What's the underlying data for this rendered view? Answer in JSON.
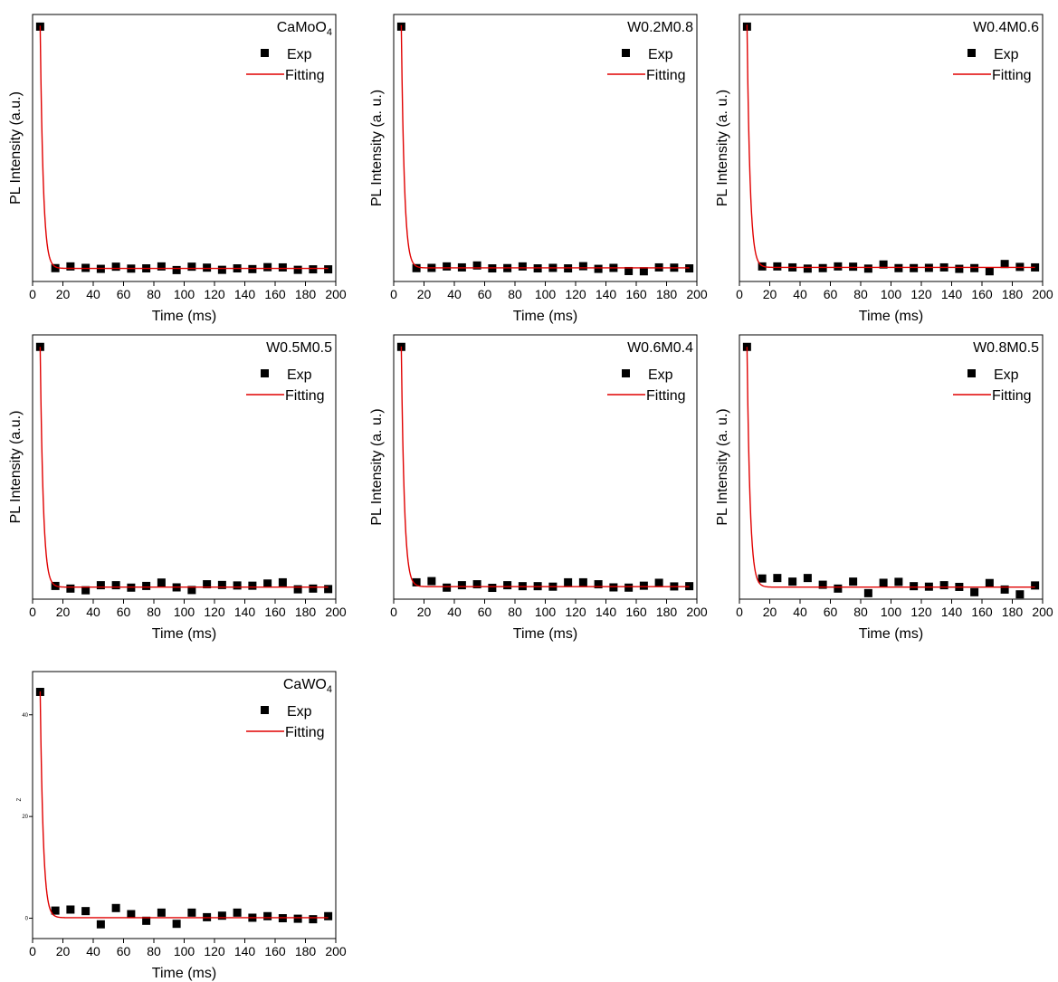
{
  "chart_data": [
    {
      "type": "scatter",
      "panel_label": "CaMoO",
      "panel_label_sub": "4",
      "xlabel": "Time (ms)",
      "ylabel": "PL Intensity (a.u.)",
      "xlim": [
        0,
        200
      ],
      "xticks": [
        0,
        20,
        40,
        60,
        80,
        100,
        120,
        140,
        160,
        180,
        200
      ],
      "ylim": [
        -0.05,
        1.05
      ],
      "show_yticks": false,
      "legend_position": "top-right",
      "series": [
        {
          "name": "Exp",
          "kind": "points",
          "color": "#000000",
          "x": [
            5,
            15,
            25,
            35,
            45,
            55,
            65,
            75,
            85,
            95,
            105,
            115,
            125,
            135,
            145,
            155,
            165,
            175,
            185,
            195
          ],
          "y": [
            1.0,
            0.005,
            0.012,
            0.006,
            0.002,
            0.011,
            0.003,
            0.004,
            0.012,
            -0.003,
            0.011,
            0.007,
            -0.002,
            0.004,
            0.001,
            0.009,
            0.008,
            -0.002,
            0.0,
            0.0
          ]
        },
        {
          "name": "Fitting",
          "kind": "fit",
          "color": "#e00000",
          "amplitude": 1.0,
          "tau": 2.0,
          "offset": 0.004
        }
      ]
    },
    {
      "type": "scatter",
      "panel_label": "W0.2M0.8",
      "xlabel": "Time (ms)",
      "ylabel": "PL Intensity (a. u.)",
      "xlim": [
        0,
        200
      ],
      "xticks": [
        0,
        20,
        40,
        60,
        80,
        100,
        120,
        140,
        160,
        180,
        200
      ],
      "ylim": [
        -0.05,
        1.05
      ],
      "show_yticks": false,
      "legend_position": "top-right",
      "series": [
        {
          "name": "Exp",
          "kind": "points",
          "color": "#000000",
          "x": [
            5,
            15,
            25,
            35,
            45,
            55,
            65,
            75,
            85,
            95,
            105,
            115,
            125,
            135,
            145,
            155,
            165,
            175,
            185,
            195
          ],
          "y": [
            1.0,
            0.005,
            0.006,
            0.012,
            0.008,
            0.016,
            0.004,
            0.005,
            0.012,
            0.004,
            0.006,
            0.004,
            0.013,
            0.002,
            0.006,
            -0.007,
            -0.008,
            0.008,
            0.007,
            0.004
          ]
        },
        {
          "name": "Fitting",
          "kind": "fit",
          "color": "#e00000",
          "amplitude": 1.0,
          "tau": 2.0,
          "offset": 0.006
        }
      ]
    },
    {
      "type": "scatter",
      "panel_label": "W0.4M0.6",
      "xlabel": "Time (ms)",
      "ylabel": "PL Intensity (a. u.)",
      "xlim": [
        0,
        200
      ],
      "xticks": [
        0,
        20,
        40,
        60,
        80,
        100,
        120,
        140,
        160,
        180,
        200
      ],
      "ylim": [
        -0.05,
        1.05
      ],
      "show_yticks": false,
      "legend_position": "top-right",
      "series": [
        {
          "name": "Exp",
          "kind": "points",
          "color": "#000000",
          "x": [
            5,
            15,
            25,
            35,
            45,
            55,
            65,
            75,
            85,
            95,
            105,
            115,
            125,
            135,
            145,
            155,
            165,
            175,
            185,
            195
          ],
          "y": [
            1.0,
            0.012,
            0.012,
            0.008,
            0.003,
            0.005,
            0.012,
            0.011,
            0.003,
            0.02,
            0.005,
            0.005,
            0.006,
            0.008,
            0.002,
            0.005,
            -0.008,
            0.022,
            0.01,
            0.008
          ]
        },
        {
          "name": "Fitting",
          "kind": "fit",
          "color": "#e00000",
          "amplitude": 1.0,
          "tau": 2.0,
          "offset": 0.008
        }
      ]
    },
    {
      "type": "scatter",
      "panel_label": "W0.5M0.5",
      "xlabel": "Time (ms)",
      "ylabel": "PL Intensity (a.u.)",
      "xlim": [
        0,
        200
      ],
      "xticks": [
        0,
        20,
        40,
        60,
        80,
        100,
        120,
        140,
        160,
        180,
        200
      ],
      "ylim": [
        -0.05,
        1.05
      ],
      "show_yticks": false,
      "legend_position": "top-right",
      "series": [
        {
          "name": "Exp",
          "kind": "points",
          "color": "#000000",
          "x": [
            5,
            15,
            25,
            35,
            45,
            55,
            65,
            75,
            85,
            95,
            105,
            115,
            125,
            135,
            145,
            155,
            165,
            175,
            185,
            195
          ],
          "y": [
            1.0,
            0.005,
            -0.006,
            -0.013,
            0.008,
            0.008,
            -0.002,
            0.005,
            0.019,
            -0.001,
            -0.012,
            0.012,
            0.009,
            0.007,
            0.006,
            0.015,
            0.02,
            -0.009,
            -0.006,
            -0.008
          ]
        },
        {
          "name": "Fitting",
          "kind": "fit",
          "color": "#e00000",
          "amplitude": 1.0,
          "tau": 2.0,
          "offset": 0.0
        }
      ]
    },
    {
      "type": "scatter",
      "panel_label": "W0.6M0.4",
      "xlabel": "Time (ms)",
      "ylabel": "PL Intensity (a. u.)",
      "xlim": [
        0,
        200
      ],
      "xticks": [
        0,
        20,
        40,
        60,
        80,
        100,
        120,
        140,
        160,
        180,
        200
      ],
      "ylim": [
        -0.05,
        1.05
      ],
      "show_yticks": false,
      "legend_position": "top-right",
      "series": [
        {
          "name": "Exp",
          "kind": "points",
          "color": "#000000",
          "x": [
            5,
            15,
            25,
            35,
            45,
            55,
            65,
            75,
            85,
            95,
            105,
            115,
            125,
            135,
            145,
            155,
            165,
            175,
            185,
            195
          ],
          "y": [
            1.0,
            0.02,
            0.025,
            -0.002,
            0.008,
            0.012,
            -0.003,
            0.008,
            0.004,
            0.004,
            0.002,
            0.02,
            0.02,
            0.012,
            -0.001,
            -0.002,
            0.006,
            0.018,
            0.003,
            0.004
          ]
        },
        {
          "name": "Fitting",
          "kind": "fit",
          "color": "#e00000",
          "amplitude": 1.0,
          "tau": 2.0,
          "offset": 0.002
        }
      ]
    },
    {
      "type": "scatter",
      "panel_label": "W0.8M0.5",
      "xlabel": "Time (ms)",
      "ylabel": "PL Intensity (a. u.)",
      "xlim": [
        0,
        200
      ],
      "xticks": [
        0,
        20,
        40,
        60,
        80,
        100,
        120,
        140,
        160,
        180,
        200
      ],
      "ylim": [
        -0.05,
        1.05
      ],
      "show_yticks": false,
      "legend_position": "top-right",
      "series": [
        {
          "name": "Exp",
          "kind": "points",
          "color": "#000000",
          "x": [
            5,
            15,
            25,
            35,
            45,
            55,
            65,
            75,
            85,
            95,
            105,
            115,
            125,
            135,
            145,
            155,
            165,
            175,
            185,
            195
          ],
          "y": [
            1.0,
            0.036,
            0.038,
            0.023,
            0.038,
            0.01,
            -0.006,
            0.023,
            -0.025,
            0.018,
            0.022,
            0.004,
            0.002,
            0.008,
            0.001,
            -0.021,
            0.017,
            -0.01,
            -0.03,
            0.007
          ]
        },
        {
          "name": "Fitting",
          "kind": "fit",
          "color": "#e00000",
          "amplitude": 1.0,
          "tau": 2.0,
          "offset": 0.0
        }
      ]
    },
    {
      "type": "scatter",
      "panel_label": "CaWO",
      "panel_label_sub": "4",
      "xlabel": "Time (ms)",
      "ylabel": "Z",
      "xlim": [
        0,
        200
      ],
      "xticks": [
        0,
        20,
        40,
        60,
        80,
        100,
        120,
        140,
        160,
        180,
        200
      ],
      "ylim": [
        -4,
        48.5
      ],
      "show_yticks": true,
      "yticks": [
        0,
        20,
        40
      ],
      "legend_position": "top-right",
      "series": [
        {
          "name": "Exp",
          "kind": "points",
          "color": "#000000",
          "x": [
            5,
            15,
            25,
            35,
            45,
            55,
            65,
            75,
            85,
            95,
            105,
            115,
            125,
            135,
            145,
            155,
            165,
            175,
            185,
            195
          ],
          "y": [
            44.5,
            1.5,
            1.7,
            1.4,
            -1.2,
            2.0,
            0.8,
            -0.5,
            1.1,
            -1.1,
            1.1,
            0.2,
            0.5,
            1.1,
            0.1,
            0.4,
            0.0,
            -0.1,
            -0.2,
            0.4
          ]
        },
        {
          "name": "Fitting",
          "kind": "fit",
          "color": "#e00000",
          "amplitude": 44.5,
          "tau": 2.0,
          "offset": 0.1
        }
      ]
    }
  ]
}
